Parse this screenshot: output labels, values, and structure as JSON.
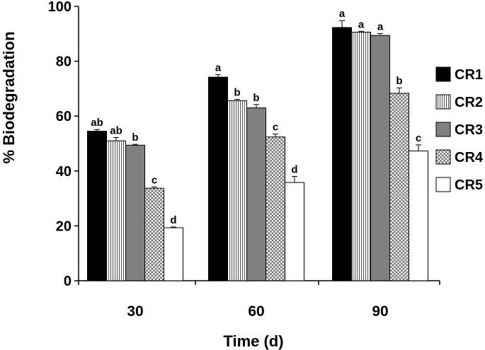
{
  "chart_data": {
    "type": "bar",
    "title": "",
    "xlabel": "Time (d)",
    "ylabel": "% Biodegradation",
    "categories": [
      "30",
      "60",
      "90"
    ],
    "ylim": [
      0,
      100
    ],
    "yticks": [
      0,
      20,
      40,
      60,
      80,
      100
    ],
    "grid": false,
    "legend_position": "right",
    "series": [
      {
        "name": "CR1",
        "fill": "#000000",
        "pattern": "solid",
        "values": [
          54.5,
          74.2,
          92.3
        ],
        "errors": [
          0.6,
          0.9,
          2.5
        ],
        "letters": [
          "ab",
          "a",
          "a"
        ]
      },
      {
        "name": "CR2",
        "fill": "#ffffff",
        "pattern": "vertical-lines",
        "values": [
          51.0,
          65.6,
          90.6
        ],
        "errors": [
          1.2,
          0.5,
          0.3
        ],
        "letters": [
          "ab",
          "b",
          "a"
        ]
      },
      {
        "name": "CR3",
        "fill": "#808080",
        "pattern": "solid",
        "values": [
          49.4,
          63.0,
          89.4
        ],
        "errors": [
          0.3,
          1.2,
          0.7
        ],
        "letters": [
          "b",
          "b",
          "a"
        ]
      },
      {
        "name": "CR4",
        "fill": "#d9d9d9",
        "pattern": "crosshatch",
        "values": [
          33.7,
          52.4,
          68.3
        ],
        "errors": [
          0.5,
          1.1,
          2.0
        ],
        "letters": [
          "c",
          "c",
          "b"
        ]
      },
      {
        "name": "CR5",
        "fill": "#ffffff",
        "pattern": "none",
        "values": [
          19.3,
          35.8,
          47.3
        ],
        "errors": [
          0.3,
          2.2,
          2.2
        ],
        "letters": [
          "d",
          "d",
          "c"
        ]
      }
    ]
  }
}
